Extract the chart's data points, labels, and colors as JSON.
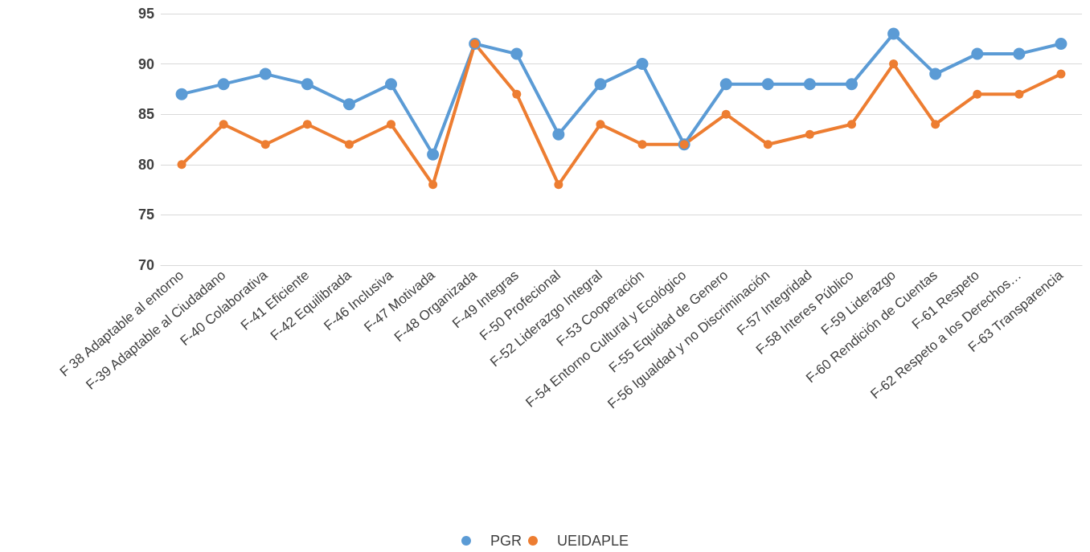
{
  "chart_data": {
    "type": "line",
    "categories": [
      "F 38 Adaptable al entorno",
      "F-39 Adaptable al Ciudadano",
      "F-40 Colaborativa",
      "F-41 Eficiente",
      "F-42 Equilibrada",
      "F-46 Inclusiva",
      "F-47 Motivada",
      "F-48 Organizada",
      "F-49 Integras",
      "F-50 Profecional",
      "F-52 Liderazgo Integral",
      "F-53 Cooperación",
      "F-54 Entorno Cultural y Ecológico",
      "F-55 Equidad de Genero",
      "F-56 Igualdad y no Discriminación",
      "F-57 Integridad",
      "F-58 Interes Público",
      "F-59 Liderazgo",
      "F-60 Rendición de Cuentas",
      "F-61 Respeto",
      "F-62 Respeto a los Derechos…",
      "F-63 Transparencia"
    ],
    "series": [
      {
        "name": "PGR",
        "color": "#5b9bd5",
        "values": [
          87,
          88,
          89,
          88,
          86,
          88,
          81,
          92,
          91,
          83,
          88,
          90,
          82,
          88,
          88,
          88,
          88,
          93,
          89,
          91,
          91,
          92
        ]
      },
      {
        "name": "UEIDAPLE",
        "color": "#ed7d31",
        "values": [
          80,
          84,
          82,
          84,
          82,
          84,
          78,
          92,
          87,
          78,
          84,
          82,
          82,
          85,
          82,
          83,
          84,
          90,
          84,
          87,
          87,
          89
        ]
      }
    ],
    "ylim": [
      70,
      95
    ],
    "yticks": [
      70,
      75,
      80,
      85,
      90,
      95
    ],
    "grid": "y",
    "legend": "bottom",
    "marker": "circle",
    "line_style": "solid"
  }
}
